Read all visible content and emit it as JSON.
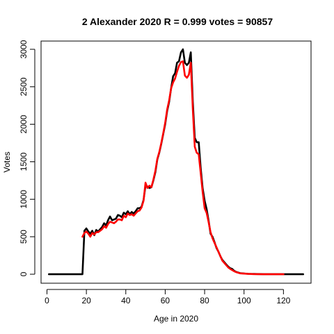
{
  "chart_data": {
    "type": "line",
    "title": "2 Alexander 2020 R = 0.999 votes = 90857",
    "xlabel": "Age in 2020",
    "ylabel": "Votes",
    "xlim": [
      -3,
      134
    ],
    "ylim": [
      -120,
      3110
    ],
    "xticks": [
      0,
      20,
      40,
      60,
      80,
      100,
      120
    ],
    "yticks": [
      0,
      500,
      1000,
      1500,
      2000,
      2500,
      3000
    ],
    "grid": false,
    "series": [
      {
        "color": "#000000",
        "x": [
          1,
          5,
          10,
          15,
          18,
          19,
          20,
          21,
          22,
          23,
          24,
          25,
          26,
          27,
          28,
          29,
          30,
          31,
          32,
          33,
          34,
          35,
          36,
          37,
          38,
          39,
          40,
          41,
          42,
          43,
          44,
          45,
          46,
          47,
          48,
          49,
          50,
          51,
          52,
          53,
          54,
          55,
          56,
          57,
          58,
          59,
          60,
          61,
          62,
          63,
          64,
          65,
          66,
          67,
          68,
          69,
          70,
          71,
          72,
          73,
          74,
          75,
          76,
          77,
          78,
          79,
          80,
          81,
          82,
          83,
          84,
          85,
          86,
          87,
          88,
          89,
          90,
          91,
          92,
          93,
          94,
          95,
          96,
          98,
          100,
          102,
          105,
          110,
          115,
          120,
          125,
          130
        ],
        "y": [
          0,
          0,
          0,
          0,
          0,
          580,
          610,
          570,
          540,
          580,
          520,
          590,
          570,
          600,
          630,
          680,
          650,
          720,
          770,
          720,
          730,
          740,
          790,
          780,
          760,
          820,
          800,
          840,
          800,
          830,
          810,
          840,
          880,
          880,
          900,
          990,
          1180,
          1170,
          1150,
          1160,
          1250,
          1360,
          1530,
          1620,
          1740,
          1870,
          2000,
          2180,
          2300,
          2480,
          2640,
          2680,
          2820,
          2840,
          2960,
          3000,
          2820,
          2790,
          2820,
          2960,
          2300,
          1820,
          1760,
          1760,
          1420,
          1150,
          980,
          870,
          720,
          540,
          500,
          430,
          350,
          300,
          240,
          190,
          160,
          130,
          100,
          80,
          70,
          45,
          30,
          15,
          10,
          5,
          3,
          0,
          0,
          0,
          0,
          0
        ]
      },
      {
        "color": "#ff0000",
        "x": [
          18,
          19,
          20,
          21,
          22,
          23,
          24,
          25,
          26,
          27,
          28,
          29,
          30,
          31,
          32,
          33,
          34,
          35,
          36,
          37,
          38,
          39,
          40,
          41,
          42,
          43,
          44,
          45,
          46,
          47,
          48,
          49,
          50,
          51,
          52,
          53,
          54,
          55,
          56,
          57,
          58,
          59,
          60,
          61,
          62,
          63,
          64,
          65,
          66,
          67,
          68,
          69,
          70,
          71,
          72,
          73,
          74,
          75,
          76,
          77,
          78,
          79,
          80,
          81,
          82,
          83,
          84,
          85,
          86,
          87,
          88,
          89,
          90,
          91,
          92,
          93,
          94,
          95,
          96,
          98,
          100,
          102,
          105,
          110,
          112,
          120
        ],
        "y": [
          500,
          550,
          570,
          540,
          500,
          550,
          530,
          560,
          560,
          580,
          600,
          640,
          620,
          670,
          700,
          690,
          680,
          700,
          730,
          730,
          720,
          780,
          760,
          810,
          790,
          800,
          780,
          810,
          840,
          850,
          890,
          980,
          1220,
          1150,
          1180,
          1160,
          1260,
          1380,
          1540,
          1630,
          1750,
          1880,
          2020,
          2200,
          2320,
          2480,
          2560,
          2610,
          2700,
          2780,
          2830,
          2840,
          2650,
          2620,
          2660,
          2820,
          2200,
          1700,
          1620,
          1600,
          1350,
          1100,
          880,
          820,
          700,
          560,
          480,
          420,
          360,
          300,
          240,
          180,
          150,
          120,
          90,
          70,
          55,
          40,
          28,
          12,
          8,
          4,
          2,
          0,
          0,
          0
        ]
      }
    ]
  }
}
